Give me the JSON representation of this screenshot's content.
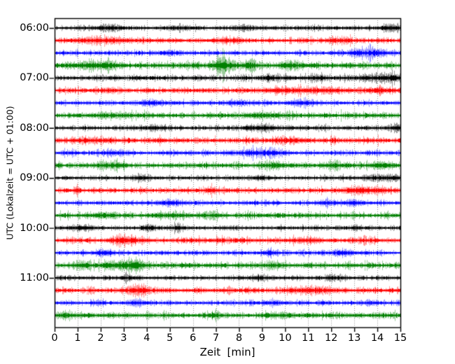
{
  "chart_data": {
    "type": "line",
    "subtype": "helicorder-drum-seismogram",
    "title": "",
    "xlabel": "Zeit  [min]",
    "ylabel": "UTC (Lokalzeit = UTC + 01:00)",
    "xlim": [
      0,
      15
    ],
    "x_ticks": [
      0,
      1,
      2,
      3,
      4,
      5,
      6,
      7,
      8,
      9,
      10,
      11,
      12,
      13,
      14,
      15
    ],
    "y_tick_labels": [
      "06:00",
      "07:00",
      "08:00",
      "09:00",
      "10:00",
      "11:00"
    ],
    "minutes_per_line": 15,
    "grid": {
      "vertical": true,
      "horizontal": false,
      "style": "dotted",
      "color": "#8a8a8a"
    },
    "frame_color": "#000000",
    "background": "#ffffff",
    "trace_color_cycle": [
      "#000000",
      "#ff0000",
      "#0000ff",
      "#008000"
    ],
    "traces": [
      {
        "start": "06:00",
        "color": "#000000",
        "noise": 1.5,
        "events": [
          [
            2.5,
            1.5,
            0.5
          ],
          [
            5.5,
            1.5,
            0.4
          ],
          [
            8.2,
            1.8,
            0.4
          ],
          [
            14.6,
            2.5,
            0.3
          ]
        ]
      },
      {
        "start": "06:15",
        "color": "#ff0000",
        "noise": 1.8,
        "events": [
          [
            2.0,
            1.8,
            0.8
          ],
          [
            7.6,
            1.5,
            0.5
          ],
          [
            12.3,
            1.5,
            0.5
          ]
        ]
      },
      {
        "start": "06:30",
        "color": "#0000ff",
        "noise": 1.6,
        "events": [
          [
            5.1,
            1.5,
            0.4
          ],
          [
            13.1,
            2.2,
            0.35
          ],
          [
            13.9,
            2.8,
            0.35
          ]
        ]
      },
      {
        "start": "06:45",
        "color": "#008000",
        "noise": 2.1,
        "events": [
          [
            1.7,
            2.5,
            0.5
          ],
          [
            2.3,
            2.0,
            0.4
          ],
          [
            7.05,
            3.0,
            0.25
          ],
          [
            7.3,
            7.5,
            0.18
          ],
          [
            7.65,
            2.5,
            0.2
          ],
          [
            8.45,
            3.5,
            0.22
          ],
          [
            10.2,
            2.5,
            0.4
          ]
        ]
      },
      {
        "start": "07:00",
        "color": "#000000",
        "noise": 1.8,
        "events": [
          [
            9.3,
            2.0,
            0.3
          ],
          [
            11.3,
            1.8,
            0.3
          ],
          [
            13.8,
            2.2,
            0.6
          ],
          [
            14.7,
            2.8,
            0.3
          ]
        ]
      },
      {
        "start": "07:15",
        "color": "#ff0000",
        "noise": 1.9,
        "events": [
          [
            9.8,
            1.8,
            0.6
          ],
          [
            11.5,
            1.8,
            0.6
          ],
          [
            14.0,
            1.5,
            0.5
          ]
        ]
      },
      {
        "start": "07:30",
        "color": "#0000ff",
        "noise": 1.6,
        "events": [
          [
            4.2,
            1.5,
            0.4
          ],
          [
            7.9,
            2.0,
            0.3
          ],
          [
            10.7,
            2.5,
            0.35
          ]
        ]
      },
      {
        "start": "07:45",
        "color": "#008000",
        "noise": 1.9,
        "events": [
          [
            2.5,
            1.5,
            0.6
          ],
          [
            9.0,
            1.5,
            0.5
          ]
        ]
      },
      {
        "start": "08:00",
        "color": "#000000",
        "noise": 1.6,
        "events": [
          [
            4.3,
            1.5,
            0.3
          ],
          [
            8.55,
            2.2,
            0.25
          ],
          [
            9.3,
            1.8,
            0.3
          ],
          [
            14.8,
            2.2,
            0.25
          ]
        ]
      },
      {
        "start": "08:15",
        "color": "#ff0000",
        "noise": 1.9,
        "events": [
          [
            1.5,
            1.5,
            0.6
          ],
          [
            10.2,
            1.5,
            0.5
          ]
        ]
      },
      {
        "start": "08:30",
        "color": "#0000ff",
        "noise": 1.6,
        "events": [
          [
            2.6,
            1.5,
            0.4
          ],
          [
            8.5,
            2.2,
            0.3
          ],
          [
            9.35,
            3.0,
            0.35
          ]
        ]
      },
      {
        "start": "08:45",
        "color": "#008000",
        "noise": 1.9,
        "events": [
          [
            2.4,
            1.8,
            0.4
          ],
          [
            9.6,
            2.0,
            0.35
          ],
          [
            12.0,
            2.0,
            0.4
          ],
          [
            14.2,
            2.0,
            0.35
          ]
        ]
      },
      {
        "start": "09:00",
        "color": "#000000",
        "noise": 1.5,
        "events": [
          [
            3.75,
            2.2,
            0.3
          ],
          [
            8.9,
            1.5,
            0.3
          ],
          [
            14.3,
            2.0,
            0.6
          ]
        ]
      },
      {
        "start": "09:15",
        "color": "#ff0000",
        "noise": 1.8,
        "events": [
          [
            0.95,
            2.8,
            0.12
          ],
          [
            6.8,
            2.5,
            0.15
          ],
          [
            13.5,
            1.8,
            0.8
          ]
        ]
      },
      {
        "start": "09:30",
        "color": "#0000ff",
        "noise": 1.6,
        "events": [
          [
            5.0,
            1.5,
            0.4
          ],
          [
            11.8,
            2.0,
            0.3
          ],
          [
            12.9,
            1.8,
            0.3
          ]
        ]
      },
      {
        "start": "09:45",
        "color": "#008000",
        "noise": 1.9,
        "events": [
          [
            2.1,
            1.8,
            0.4
          ],
          [
            5.2,
            1.5,
            0.4
          ],
          [
            6.8,
            1.8,
            0.3
          ]
        ]
      },
      {
        "start": "10:00",
        "color": "#000000",
        "noise": 1.6,
        "events": [
          [
            1.3,
            1.5,
            0.4
          ],
          [
            4.05,
            3.0,
            0.15
          ],
          [
            5.35,
            2.5,
            0.18
          ]
        ]
      },
      {
        "start": "10:15",
        "color": "#ff0000",
        "noise": 1.9,
        "events": [
          [
            2.85,
            2.2,
            0.3
          ],
          [
            3.3,
            1.8,
            0.3
          ],
          [
            10.9,
            1.5,
            0.5
          ]
        ]
      },
      {
        "start": "10:30",
        "color": "#0000ff",
        "noise": 1.6,
        "events": [
          [
            2.1,
            2.2,
            0.3
          ],
          [
            9.4,
            1.5,
            0.3
          ],
          [
            12.5,
            1.8,
            0.4
          ]
        ]
      },
      {
        "start": "10:45",
        "color": "#008000",
        "noise": 2.0,
        "events": [
          [
            1.15,
            2.2,
            0.3
          ],
          [
            2.4,
            2.0,
            0.35
          ],
          [
            3.3,
            3.5,
            0.3
          ],
          [
            3.6,
            2.8,
            0.25
          ],
          [
            9.5,
            1.8,
            0.4
          ]
        ]
      },
      {
        "start": "11:00",
        "color": "#000000",
        "noise": 1.5,
        "events": [
          [
            3.05,
            2.5,
            0.15
          ],
          [
            8.9,
            1.5,
            0.3
          ],
          [
            12.1,
            1.5,
            0.3
          ]
        ]
      },
      {
        "start": "11:15",
        "color": "#ff0000",
        "noise": 1.9,
        "events": [
          [
            3.4,
            2.5,
            0.3
          ],
          [
            3.75,
            2.8,
            0.25
          ],
          [
            11.0,
            2.2,
            0.7
          ]
        ]
      },
      {
        "start": "11:30",
        "color": "#0000ff",
        "noise": 1.6,
        "events": [
          [
            3.55,
            2.5,
            0.25
          ],
          [
            9.4,
            1.5,
            0.3
          ],
          [
            13.6,
            1.5,
            0.3
          ]
        ]
      },
      {
        "start": "11:45",
        "color": "#008000",
        "noise": 1.9,
        "events": [
          [
            0.4,
            2.0,
            0.25
          ],
          [
            6.9,
            2.2,
            0.2
          ],
          [
            9.9,
            1.5,
            0.4
          ]
        ]
      }
    ]
  }
}
